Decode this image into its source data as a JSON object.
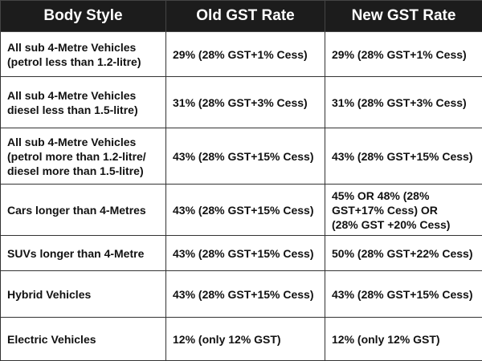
{
  "table": {
    "headers": [
      "Body Style",
      "Old GST Rate",
      "New GST Rate"
    ],
    "rows": [
      [
        "All sub 4-Metre Vehicles\n(petrol less than 1.2-litre)",
        "29% (28% GST+1% Cess)",
        "29% (28% GST+1% Cess)"
      ],
      [
        "All sub 4-Metre Vehicles\ndiesel less than 1.5-litre)",
        "31% (28% GST+3% Cess)",
        "31% (28% GST+3% Cess)"
      ],
      [
        "All sub 4-Metre Vehicles\n(petrol more than 1.2-litre/\ndiesel more than 1.5-litre)",
        "43% (28% GST+15% Cess)",
        "43% (28% GST+15% Cess)"
      ],
      [
        "Cars longer than 4-Metres",
        "43% (28% GST+15% Cess)",
        "45% OR 48% (28%\nGST+17% Cess) OR\n(28% GST +20% Cess)"
      ],
      [
        "SUVs longer than 4-Metre",
        "43% (28% GST+15% Cess)",
        "50% (28% GST+22% Cess)"
      ],
      [
        "Hybrid Vehicles",
        "43% (28% GST+15% Cess)",
        "43% (28% GST+15% Cess)"
      ],
      [
        "Electric Vehicles",
        "12% (only 12% GST)",
        "12% (only 12% GST)"
      ]
    ]
  }
}
